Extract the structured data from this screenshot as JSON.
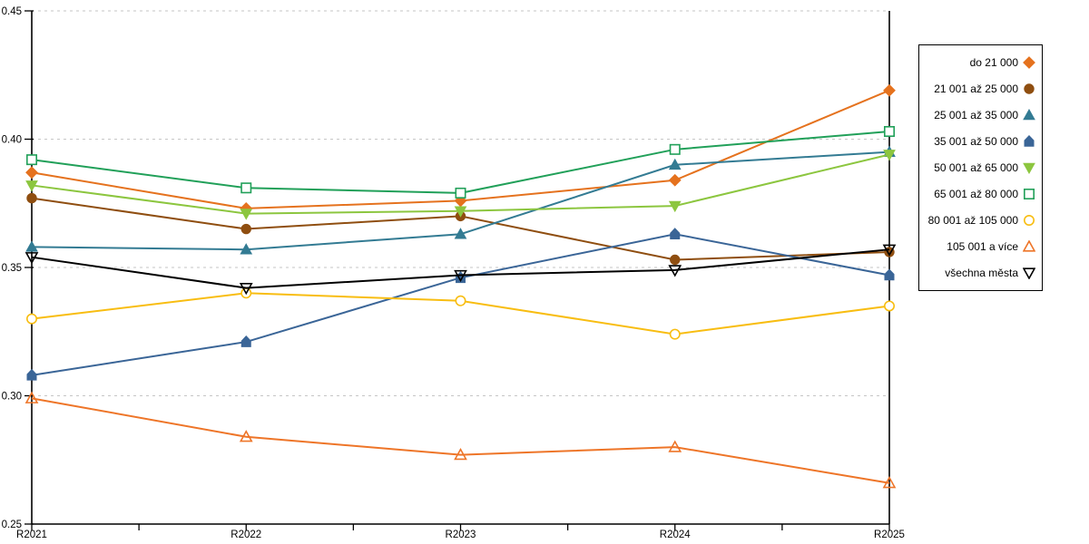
{
  "page": {
    "background": "#FFFFFF"
  },
  "chart_data": {
    "type": "line",
    "title": "",
    "xlabel": "",
    "ylabel": "",
    "x_categories": [
      "R2021",
      "R2022",
      "R2023",
      "R2024",
      "R2025"
    ],
    "ylim": [
      0.25,
      0.45
    ],
    "y_ticks": [
      0.25,
      0.3,
      0.35,
      0.4,
      0.45
    ],
    "y_tick_labels": [
      "0.25",
      "0.30",
      "0.35",
      "0.40",
      "0.45"
    ],
    "x_minor_ticks_between_years": 1,
    "grid": {
      "horizontal": true,
      "style": "dashed",
      "color": "#C6C6C6"
    },
    "axis_color": "#000000",
    "legend": {
      "position": "right",
      "border_color": "#000000"
    },
    "series": [
      {
        "name": "do 21 000",
        "color": "#E5721E",
        "marker": "diamond",
        "fill": "solid",
        "values": [
          0.387,
          0.373,
          0.376,
          0.384,
          0.419
        ]
      },
      {
        "name": "21 001 až 25 000",
        "color": "#8F4E10",
        "marker": "circle",
        "fill": "solid",
        "values": [
          0.377,
          0.365,
          0.37,
          0.353,
          0.356
        ]
      },
      {
        "name": "25 001 až 35 000",
        "color": "#337B93",
        "marker": "triangle-up",
        "fill": "solid",
        "values": [
          0.358,
          0.357,
          0.363,
          0.39,
          0.395
        ]
      },
      {
        "name": "35 001 až 50 000",
        "color": "#3A6597",
        "marker": "pentagon",
        "fill": "solid",
        "values": [
          0.308,
          0.321,
          0.346,
          0.363,
          0.347
        ]
      },
      {
        "name": "50 001 až 65 000",
        "color": "#8CC63F",
        "marker": "triangle-down",
        "fill": "solid",
        "values": [
          0.382,
          0.371,
          0.372,
          0.374,
          0.394
        ]
      },
      {
        "name": "65 001 až 80 000",
        "color": "#21A059",
        "marker": "square",
        "fill": "open",
        "values": [
          0.392,
          0.381,
          0.379,
          0.396,
          0.403
        ]
      },
      {
        "name": "80 001 až 105 000",
        "color": "#F8BD11",
        "marker": "circle",
        "fill": "open",
        "values": [
          0.33,
          0.34,
          0.337,
          0.324,
          0.335
        ]
      },
      {
        "name": "105 001 a více",
        "color": "#EE7528",
        "marker": "triangle-up",
        "fill": "open",
        "values": [
          0.299,
          0.284,
          0.277,
          0.28,
          0.266
        ]
      },
      {
        "name": "všechna města",
        "color": "#000000",
        "marker": "triangle-down",
        "fill": "open",
        "values": [
          0.354,
          0.342,
          0.347,
          0.349,
          0.357
        ]
      }
    ]
  }
}
